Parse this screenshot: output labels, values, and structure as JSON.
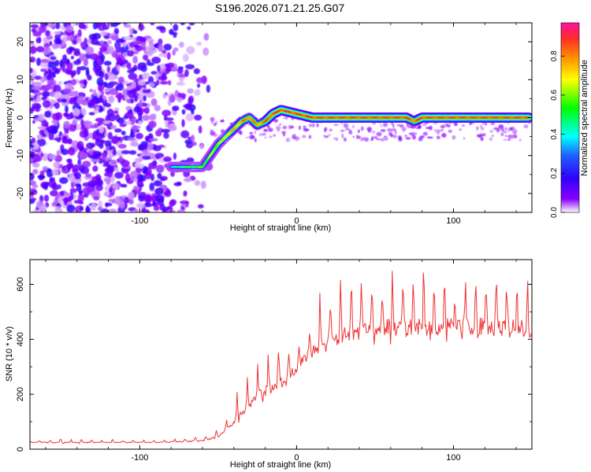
{
  "title": "S196.2026.071.21.25.G07",
  "chart_data": [
    {
      "type": "heatmap",
      "xlabel": "Height of straight line (km)",
      "ylabel": "Frequency (Hz)",
      "xlim": [
        -170,
        150
      ],
      "ylim": [
        -25,
        25
      ],
      "xticks": [
        -100,
        0,
        100
      ],
      "yticks": [
        -20,
        -10,
        0,
        10,
        20
      ],
      "grid": false,
      "colorbar": {
        "label": "Normalized spectral amplitude",
        "range": [
          0,
          0.97
        ],
        "ticks": [
          0.0,
          0.2,
          0.4,
          0.6,
          0.8
        ],
        "colormap": [
          "#ff10a0",
          "#ff2a2a",
          "#ff8c00",
          "#ffff00",
          "#00ff00",
          "#00ffff",
          "#1e60ff",
          "#3000ff",
          "#8a00ff",
          "#ffffff"
        ]
      },
      "noise_region": {
        "x": [
          -170,
          -55
        ],
        "amplitude": [
          0.02,
          0.2
        ]
      },
      "ridge_line": {
        "x": [
          -80,
          -70,
          -60,
          -55,
          -50,
          -45,
          -40,
          -35,
          -30,
          -25,
          -20,
          -15,
          -10,
          -5,
          0,
          10,
          30,
          60,
          70,
          75,
          80,
          85,
          100,
          120,
          135,
          148
        ],
        "y": [
          -13,
          -13,
          -13,
          -10,
          -7,
          -5,
          -3,
          -1,
          0,
          -2,
          -1,
          1,
          2,
          1.5,
          1,
          0,
          0,
          0,
          0,
          -1,
          0,
          0,
          0,
          0,
          0,
          0
        ],
        "amplitude": [
          0.45,
          0.55,
          0.6,
          0.65,
          0.7,
          0.75,
          0.8,
          0.85,
          0.9,
          0.85,
          0.9,
          0.95,
          0.95,
          0.95,
          0.95,
          0.95,
          0.95,
          0.95,
          0.95,
          0.9,
          0.95,
          0.95,
          0.95,
          0.95,
          0.95,
          0.95
        ]
      }
    },
    {
      "type": "line",
      "xlabel": "Height of straight line (km)",
      "ylabel": "SNR (10 * v/v)",
      "xlim": [
        -170,
        150
      ],
      "ylim": [
        0,
        690
      ],
      "xticks": [
        -100,
        0,
        100
      ],
      "yticks": [
        0,
        200,
        400,
        600
      ],
      "grid": false,
      "series": [
        {
          "name": "SNR",
          "color": "#ee3333",
          "x": [
            -170,
            -150,
            -130,
            -110,
            -90,
            -70,
            -60,
            -50,
            -45,
            -40,
            -35,
            -30,
            -25,
            -20,
            -15,
            -10,
            -5,
            0,
            5,
            10,
            15,
            20,
            25,
            30,
            40,
            50,
            60,
            70,
            80,
            90,
            100,
            110,
            120,
            130,
            140,
            150
          ],
          "y": [
            25,
            25,
            25,
            25,
            25,
            28,
            32,
            45,
            70,
            95,
            130,
            160,
            190,
            210,
            220,
            240,
            270,
            290,
            330,
            355,
            380,
            395,
            405,
            420,
            435,
            440,
            445,
            440,
            445,
            440,
            450,
            445,
            450,
            440,
            445,
            430
          ],
          "spike_amplitude": [
            8,
            12,
            10,
            8,
            8,
            12,
            15,
            25,
            35,
            60,
            80,
            100,
            120,
            130,
            140,
            120,
            110,
            100,
            110,
            120,
            140,
            150,
            160,
            170,
            180,
            180,
            170,
            175,
            180,
            170,
            175,
            180,
            185,
            180,
            175,
            180
          ]
        }
      ]
    }
  ]
}
